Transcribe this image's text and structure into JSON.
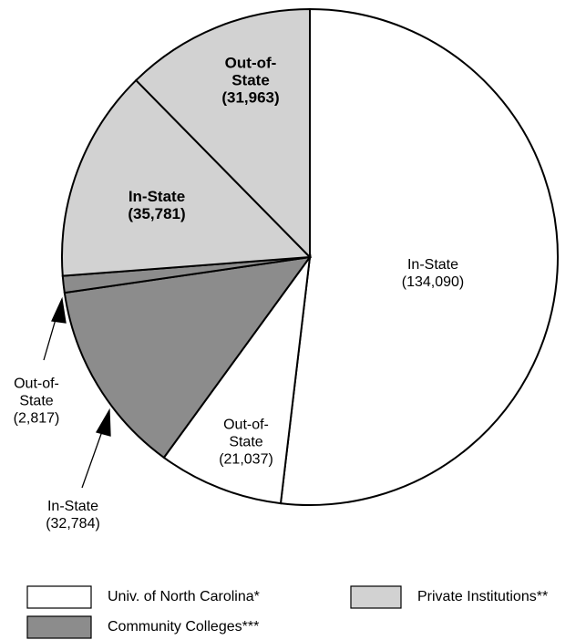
{
  "chart_data": {
    "type": "pie",
    "series": [
      {
        "name": "Univ. of North Carolina*",
        "color": "#ffffff",
        "labels": [
          "In-State",
          "Out-of-State"
        ],
        "values": [
          134090,
          21037
        ],
        "value_labels": [
          "(134,090)",
          "(21,037)"
        ]
      },
      {
        "name": "Community Colleges***",
        "color": "#8c8c8c",
        "labels": [
          "In-State",
          "Out-of-State"
        ],
        "values": [
          32784,
          2817
        ],
        "value_labels": [
          "(32,784)",
          "(2,817)"
        ]
      },
      {
        "name": "Private Institutions**",
        "color": "#d2d2d2",
        "labels": [
          "In-State",
          "Out-of-State"
        ],
        "values": [
          35781,
          31963
        ],
        "value_labels": [
          "(35,781)",
          "(31,963)"
        ]
      }
    ]
  }
}
